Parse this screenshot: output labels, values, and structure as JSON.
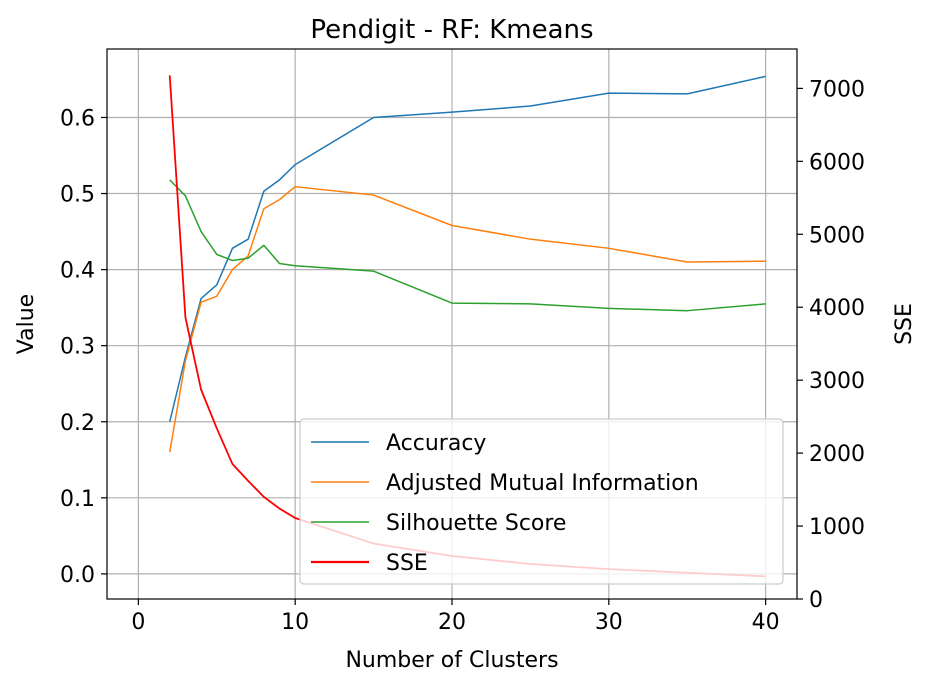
{
  "chart_data": {
    "type": "line",
    "title": "Pendigit - RF: Kmeans",
    "xlabel": "Number of Clusters",
    "ylabel": "Value",
    "y2label": "SSE",
    "xlim": [
      -2,
      42
    ],
    "ylim": [
      -0.033,
      0.69
    ],
    "y2lim": [
      0,
      7540
    ],
    "xticks": [
      "0",
      "10",
      "20",
      "30",
      "40"
    ],
    "yticks": [
      "0.0",
      "0.1",
      "0.2",
      "0.3",
      "0.4",
      "0.5",
      "0.6"
    ],
    "y2ticks": [
      "0",
      "1000",
      "2000",
      "3000",
      "4000",
      "5000",
      "6000",
      "7000"
    ],
    "grid": true,
    "legend_position": "lower-right",
    "x": [
      2,
      3,
      4,
      5,
      6,
      7,
      8,
      9,
      10,
      15,
      20,
      25,
      30,
      35,
      40
    ],
    "series": [
      {
        "name": "Accuracy",
        "axis": "left",
        "color": "#1f77b4",
        "values": [
          0.2,
          0.285,
          0.362,
          0.38,
          0.428,
          0.44,
          0.503,
          0.518,
          0.538,
          0.6,
          0.607,
          0.615,
          0.632,
          0.631,
          0.654
        ]
      },
      {
        "name": "Adjusted Mutual Information",
        "axis": "left",
        "color": "#ff7f0e",
        "values": [
          0.16,
          0.28,
          0.357,
          0.365,
          0.4,
          0.418,
          0.48,
          0.492,
          0.509,
          0.498,
          0.458,
          0.44,
          0.428,
          0.41,
          0.411
        ]
      },
      {
        "name": "Silhouette Score",
        "axis": "left",
        "color": "#2ca02c",
        "values": [
          0.518,
          0.497,
          0.45,
          0.42,
          0.412,
          0.415,
          0.432,
          0.408,
          0.405,
          0.398,
          0.356,
          0.355,
          0.349,
          0.346,
          0.355
        ]
      },
      {
        "name": "SSE",
        "axis": "right",
        "color": "#ff0000",
        "values": [
          7180,
          3860,
          2870,
          2340,
          1850,
          1620,
          1400,
          1240,
          1110,
          760,
          590,
          480,
          410,
          360,
          310
        ]
      }
    ]
  }
}
